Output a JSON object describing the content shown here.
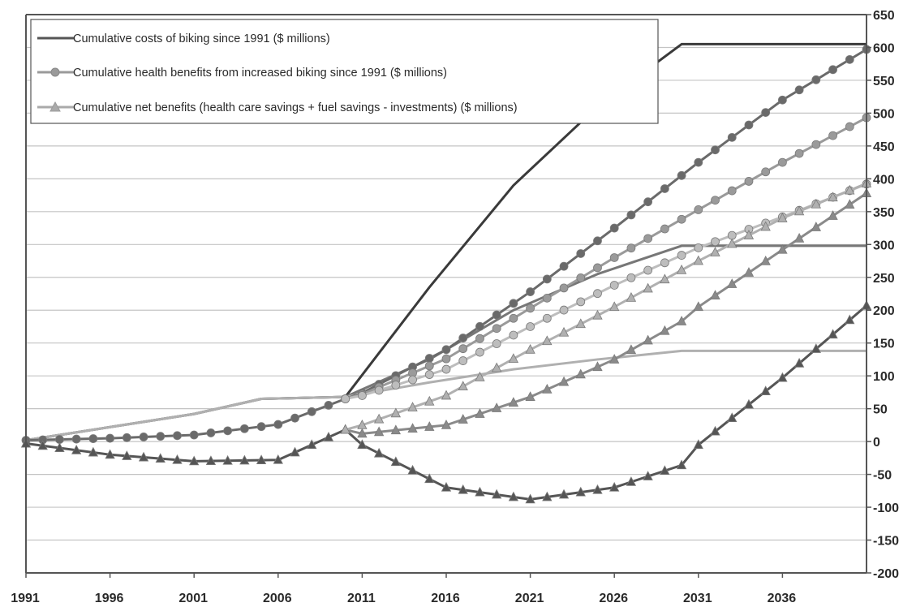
{
  "chart_data": {
    "type": "line",
    "title": "",
    "xlabel": "",
    "ylabel": "",
    "xlim": [
      1991,
      2041
    ],
    "ylim": [
      -200,
      650
    ],
    "x_ticks": [
      1991,
      1996,
      2001,
      2006,
      2011,
      2016,
      2021,
      2026,
      2031,
      2036
    ],
    "y_ticks": [
      650,
      600,
      550,
      500,
      450,
      400,
      350,
      300,
      250,
      200,
      150,
      100,
      50,
      0,
      -50,
      -100,
      -150,
      -200
    ],
    "y_axis_side": "right",
    "grid": "horizontal",
    "legend": {
      "position": "top-left",
      "entries": [
        {
          "label": "Cumulative costs of biking since 1991 ($ millions)",
          "marker": "none",
          "color": "#555555"
        },
        {
          "label": "Cumulative health benefits from increased biking since 1991 ($ millions)",
          "marker": "circle",
          "color": "#9a9a9a"
        },
        {
          "label": "Cumulative net benefits (health care savings + fuel savings - investments) ($ millions)",
          "marker": "triangle",
          "color": "#aaaaaa"
        }
      ]
    },
    "series": [
      {
        "marker": "none",
        "color": "#3a3a3a",
        "x": [
          1991,
          2001,
          2005,
          2010,
          2015,
          2020,
          2025,
          2030,
          2041
        ],
        "y": [
          2,
          42,
          65,
          68,
          235,
          390,
          510,
          605,
          605
        ]
      },
      {
        "marker": "none",
        "color": "#777777",
        "x": [
          1991,
          2001,
          2005,
          2010,
          2015,
          2020,
          2025,
          2030,
          2041
        ],
        "y": [
          2,
          42,
          65,
          68,
          125,
          200,
          255,
          298,
          298
        ]
      },
      {
        "marker": "none",
        "color": "#b0b0b0",
        "x": [
          1991,
          2001,
          2005,
          2010,
          2015,
          2020,
          2025,
          2030,
          2041
        ],
        "y": [
          2,
          42,
          65,
          68,
          90,
          110,
          125,
          138,
          138
        ]
      },
      {
        "marker": "circle",
        "color": "#6a6a6a",
        "x": [
          1991,
          1996,
          2001,
          2006,
          2010,
          2011,
          2016,
          2021,
          2026,
          2031,
          2036,
          2041
        ],
        "y": [
          2,
          5,
          10,
          26,
          65,
          74,
          140,
          228,
          325,
          425,
          520,
          597
        ]
      },
      {
        "marker": "circle",
        "color": "#9a9a9a",
        "x": [
          2010,
          2011,
          2016,
          2021,
          2026,
          2031,
          2036,
          2041
        ],
        "y": [
          65,
          72,
          126,
          203,
          280,
          353,
          425,
          493
        ]
      },
      {
        "marker": "circle",
        "color": "#bdbdbd",
        "x": [
          2010,
          2011,
          2016,
          2021,
          2026,
          2031,
          2036,
          2041
        ],
        "y": [
          65,
          70,
          110,
          175,
          238,
          295,
          342,
          392
        ]
      },
      {
        "marker": "triangle",
        "color": "#555555",
        "x": [
          1991,
          1996,
          2001,
          2006,
          2010,
          2011,
          2016,
          2021,
          2026,
          2030,
          2031,
          2036,
          2041
        ],
        "y": [
          -3,
          -20,
          -30,
          -28,
          18,
          -5,
          -70,
          -88,
          -70,
          -36,
          -5,
          97,
          207
        ]
      },
      {
        "marker": "triangle",
        "color": "#8a8a8a",
        "x": [
          2010,
          2011,
          2016,
          2021,
          2026,
          2030,
          2031,
          2036,
          2041
        ],
        "y": [
          18,
          12,
          25,
          68,
          125,
          183,
          205,
          292,
          378
        ]
      },
      {
        "marker": "triangle",
        "color": "#b0b0b0",
        "x": [
          2010,
          2011,
          2016,
          2021,
          2026,
          2031,
          2036,
          2041
        ],
        "y": [
          18,
          25,
          70,
          140,
          205,
          275,
          340,
          393
        ]
      }
    ]
  }
}
